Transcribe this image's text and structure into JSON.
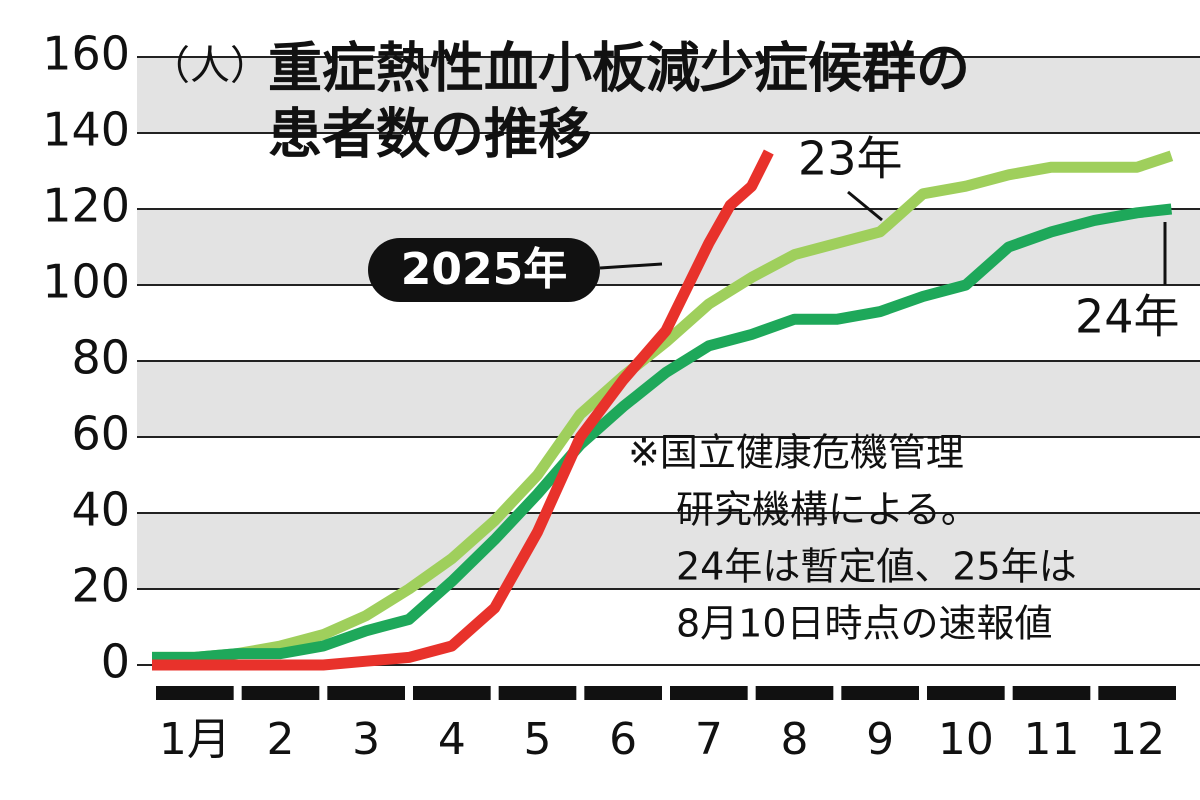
{
  "chart_data": {
    "type": "line",
    "title": [
      "重症熱性血小板減少症候群の",
      "患者数の推移"
    ],
    "y_unit": "（人）",
    "xlim": [
      1,
      13
    ],
    "xticks": [
      {
        "value": 1.5,
        "label": "1月"
      },
      {
        "value": 2.5,
        "label": "2"
      },
      {
        "value": 3.5,
        "label": "3"
      },
      {
        "value": 4.5,
        "label": "4"
      },
      {
        "value": 5.5,
        "label": "5"
      },
      {
        "value": 6.5,
        "label": "6"
      },
      {
        "value": 7.5,
        "label": "7"
      },
      {
        "value": 8.5,
        "label": "8"
      },
      {
        "value": 9.5,
        "label": "9"
      },
      {
        "value": 10.5,
        "label": "10"
      },
      {
        "value": 11.5,
        "label": "11"
      },
      {
        "value": 12.5,
        "label": "12"
      }
    ],
    "ylim": [
      0,
      160
    ],
    "yticks": [
      0,
      20,
      40,
      60,
      80,
      100,
      120,
      140,
      160
    ],
    "grid": true,
    "series": [
      {
        "name": "23年",
        "color": "#9fcf5c",
        "x": [
          1,
          1.5,
          2,
          2.5,
          3,
          3.5,
          4,
          4.5,
          5,
          5.5,
          6,
          6.5,
          7,
          7.5,
          8,
          8.5,
          9,
          9.5,
          10,
          10.5,
          11,
          11.5,
          12,
          12.5,
          12.9
        ],
        "values": [
          2,
          2,
          3,
          5,
          8,
          13,
          20,
          28,
          38,
          50,
          66,
          76,
          85,
          95,
          102,
          108,
          111,
          114,
          124,
          126,
          129,
          131,
          131,
          131,
          134
        ]
      },
      {
        "name": "24年",
        "color": "#1ea85a",
        "x": [
          1,
          1.5,
          2,
          2.5,
          3,
          3.5,
          4,
          4.5,
          5,
          5.5,
          6,
          6.5,
          7,
          7.5,
          8,
          8.5,
          9,
          9.5,
          10,
          10.5,
          11,
          11.5,
          12,
          12.5,
          12.9
        ],
        "values": [
          2,
          2,
          3,
          3,
          5,
          9,
          12,
          22,
          33,
          45,
          58,
          68,
          77,
          84,
          87,
          91,
          91,
          93,
          97,
          100,
          110,
          114,
          117,
          119,
          120
        ]
      },
      {
        "name": "2025年",
        "color": "#e8322b",
        "x": [
          1,
          1.5,
          2,
          2.5,
          3,
          3.5,
          4,
          4.5,
          5,
          5.5,
          6,
          6.5,
          7,
          7.5,
          7.75,
          8,
          8.2
        ],
        "values": [
          0,
          0,
          0,
          0,
          0,
          1,
          2,
          5,
          15,
          35,
          60,
          75,
          88,
          111,
          121,
          126,
          135
        ]
      }
    ],
    "note": [
      "※国立健康危機管理",
      "研究機構による。",
      "24年は暫定値、25年は",
      "8月10日時点の速報値"
    ]
  }
}
